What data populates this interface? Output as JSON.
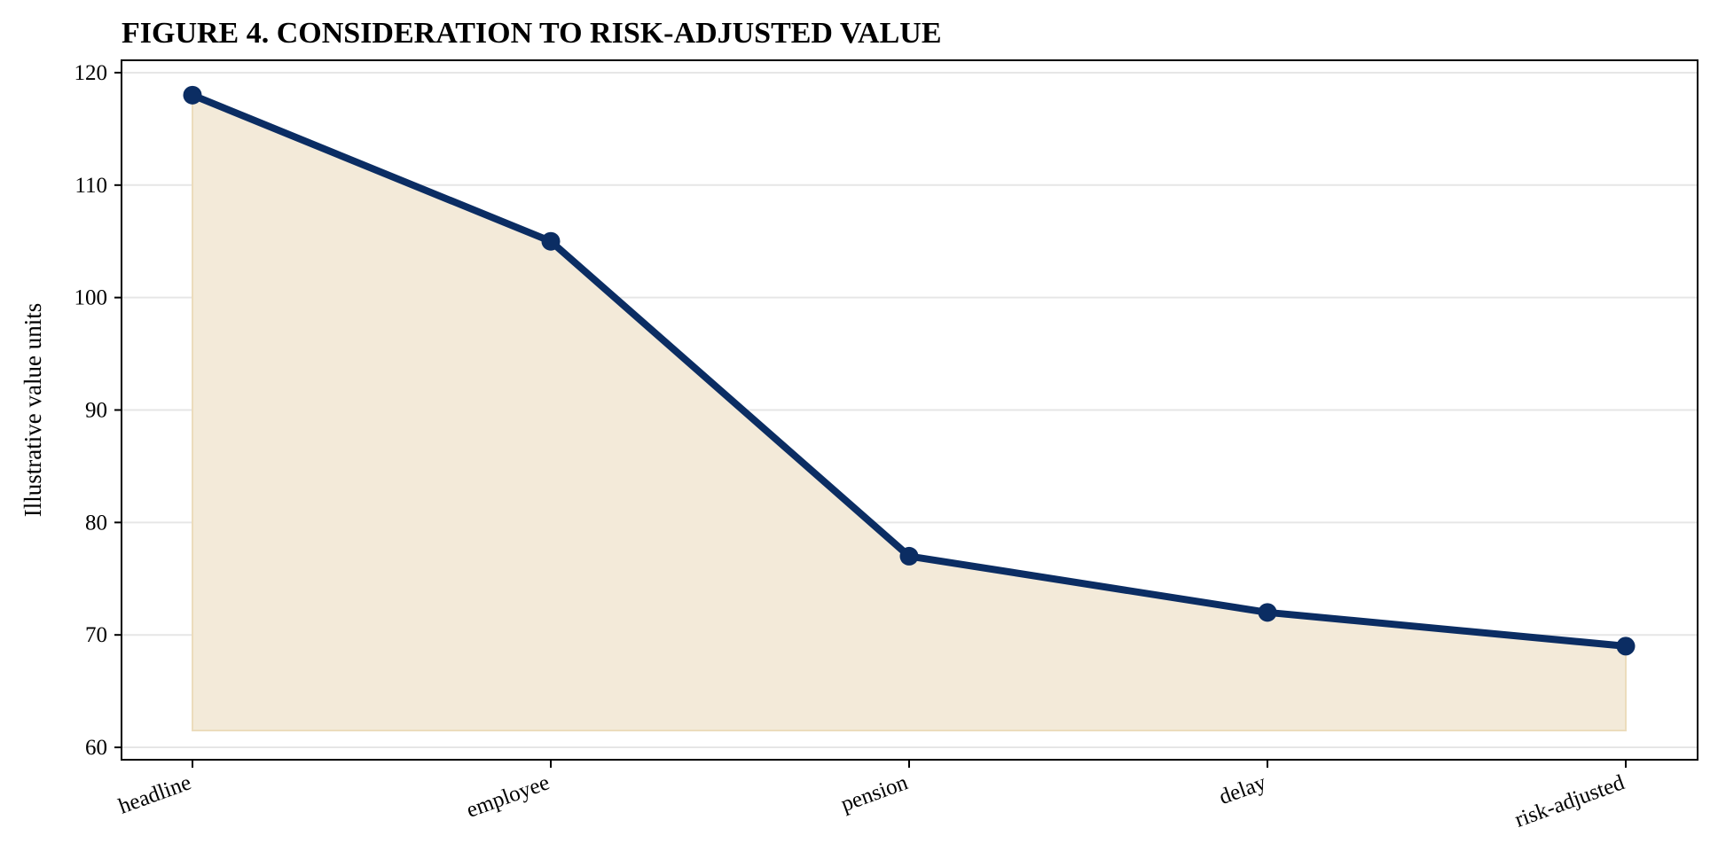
{
  "chart_data": {
    "type": "area",
    "title": "FIGURE 4. CONSIDERATION TO RISK-ADJUSTED VALUE",
    "xlabel": "",
    "ylabel": "Illustrative value units",
    "categories": [
      "headline",
      "employee",
      "pension",
      "delay",
      "risk-adjusted"
    ],
    "series": [
      {
        "values": [
          118,
          105,
          77,
          72,
          69
        ]
      }
    ],
    "area_baseline": 61.5,
    "ylim": [
      58.9,
      121.1
    ],
    "yticks": [
      60,
      70,
      80,
      90,
      100,
      110,
      120
    ],
    "grid": "horizontal",
    "legend": "none",
    "colors": {
      "line": "#0b2d63",
      "marker": "#0b2d63",
      "fill": "#f3ead9",
      "fill_edge": "#ecdcbc",
      "grid": "#e6e6e6",
      "axis": "#000000"
    }
  }
}
